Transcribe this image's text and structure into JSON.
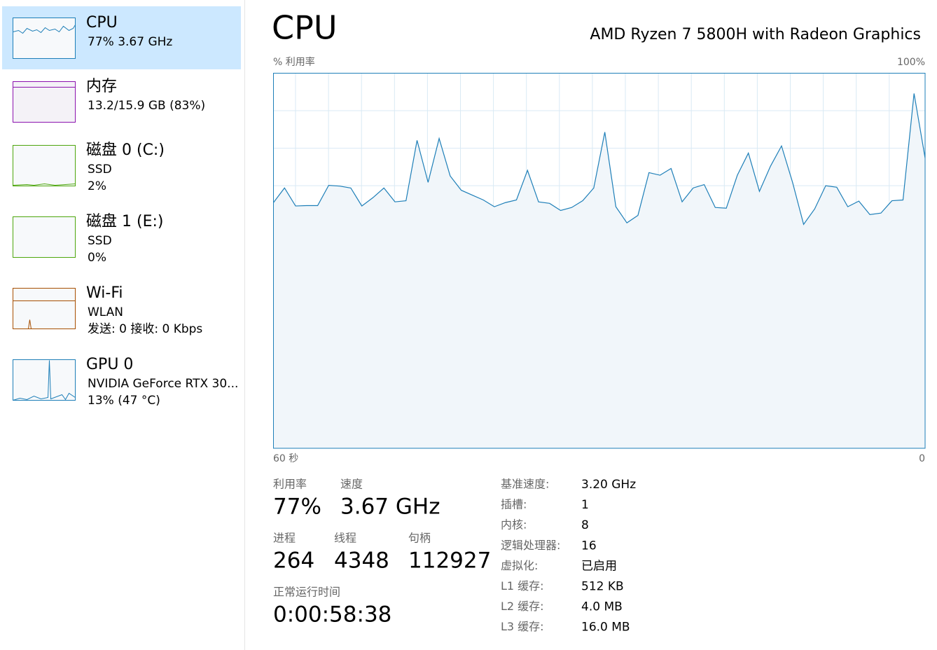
{
  "sidebar": {
    "items": [
      {
        "title": "CPU",
        "lines": [
          "77%  3.67 GHz"
        ],
        "color": "#1e7fb8",
        "selected": true
      },
      {
        "title": "内存",
        "lines": [
          "13.2/15.9 GB (83%)"
        ],
        "color": "#8b12ae"
      },
      {
        "title": "磁盘 0 (C:)",
        "lines": [
          "SSD",
          "2%"
        ],
        "color": "#4da60c"
      },
      {
        "title": "磁盘 1 (E:)",
        "lines": [
          "SSD",
          "0%"
        ],
        "color": "#4da60c"
      },
      {
        "title": "Wi-Fi",
        "lines": [
          "WLAN",
          "发送: 0  接收: 0 Kbps"
        ],
        "color": "#a74f01"
      },
      {
        "title": "GPU 0",
        "lines": [
          "NVIDIA GeForce RTX 30...",
          "13% (47 °C)"
        ],
        "color": "#1e7fb8"
      }
    ]
  },
  "chart_data": {
    "type": "line",
    "title": "CPU",
    "subtitle": "AMD Ryzen 7 5800H with Radeon Graphics",
    "ylabel": "% 利用率",
    "xlabels": [
      "60 秒",
      "0"
    ],
    "color": "#1e7fb8",
    "values": [
      65.5,
      69.4,
      64.6,
      64.7,
      64.7,
      70.1,
      69.9,
      69.4,
      64.6,
      66.8,
      69.4,
      65.7,
      66.0,
      82.1,
      70.9,
      82.6,
      72.6,
      68.8,
      67.5,
      66.2,
      64.4,
      65.5,
      66.2,
      74.1,
      65.7,
      65.3,
      63.4,
      64.2,
      66.0,
      69.4,
      84.3,
      64.4,
      60.1,
      62.1,
      73.5,
      72.8,
      74.6,
      65.7,
      69.4,
      70.3,
      64.2,
      64.0,
      72.8,
      78.7,
      68.5,
      75.2,
      80.6,
      70.9,
      59.7,
      63.8,
      70.0,
      69.6,
      64.4,
      65.9,
      62.3,
      62.7,
      66.0,
      66.2,
      94.6,
      77.4
    ],
    "ylim": [
      0,
      100
    ],
    "yticks": [
      {
        "value": 100,
        "label": "100%"
      }
    ],
    "ygrid": [
      10,
      20,
      30,
      40,
      50,
      60,
      70,
      80,
      90
    ],
    "grid": true
  },
  "stats": {
    "primary": [
      {
        "label": "利用率",
        "value": "77%"
      },
      {
        "label": "速度",
        "value": "3.67 GHz"
      }
    ],
    "counts": [
      {
        "label": "进程",
        "value": 264
      },
      {
        "label": "线程",
        "value": 4348
      },
      {
        "label": "句柄",
        "value": 112927
      }
    ],
    "uptime": {
      "label": "正常运行时间",
      "value": "0:00:58:38"
    },
    "specs": [
      {
        "label": "基准速度:",
        "value": "3.20 GHz"
      },
      {
        "label": "插槽:",
        "value": 1
      },
      {
        "label": "内核:",
        "value": 8
      },
      {
        "label": "逻辑处理器:",
        "value": 16
      },
      {
        "label": "虚拟化:",
        "value": "已启用"
      },
      {
        "label": "L1 缓存:",
        "value": "512 KB"
      },
      {
        "label": "L2 缓存:",
        "value": "4.0 MB"
      },
      {
        "label": "L3 缓存:",
        "value": "16.0 MB"
      }
    ]
  }
}
